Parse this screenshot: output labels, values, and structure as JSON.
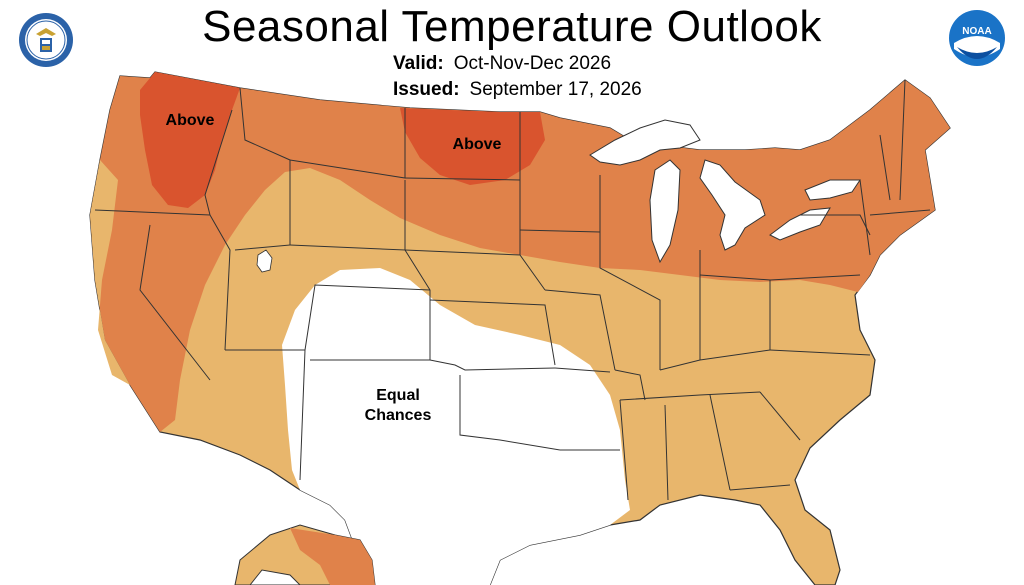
{
  "header": {
    "title": "Seasonal Temperature Outlook",
    "valid_label": "Valid:",
    "valid_value": "Oct-Nov-Dec 2026",
    "issued_label": "Issued:",
    "issued_value": "September 17, 2026"
  },
  "logos": {
    "left": "department-of-commerce-seal",
    "right": "noaa-logo",
    "noaa_text": "NOAA"
  },
  "map": {
    "labels": {
      "above_northwest": "Above",
      "above_northplains": "Above",
      "equal_chances_line1": "Equal",
      "equal_chances_line2": "Chances"
    },
    "colors": {
      "above_40_50": "#e0824a",
      "above_33_40": "#e8b66c",
      "above_50_60": "#d9542e",
      "equal_chances": "#ffffff",
      "water": "#ffffff",
      "borders": "#333333"
    }
  }
}
